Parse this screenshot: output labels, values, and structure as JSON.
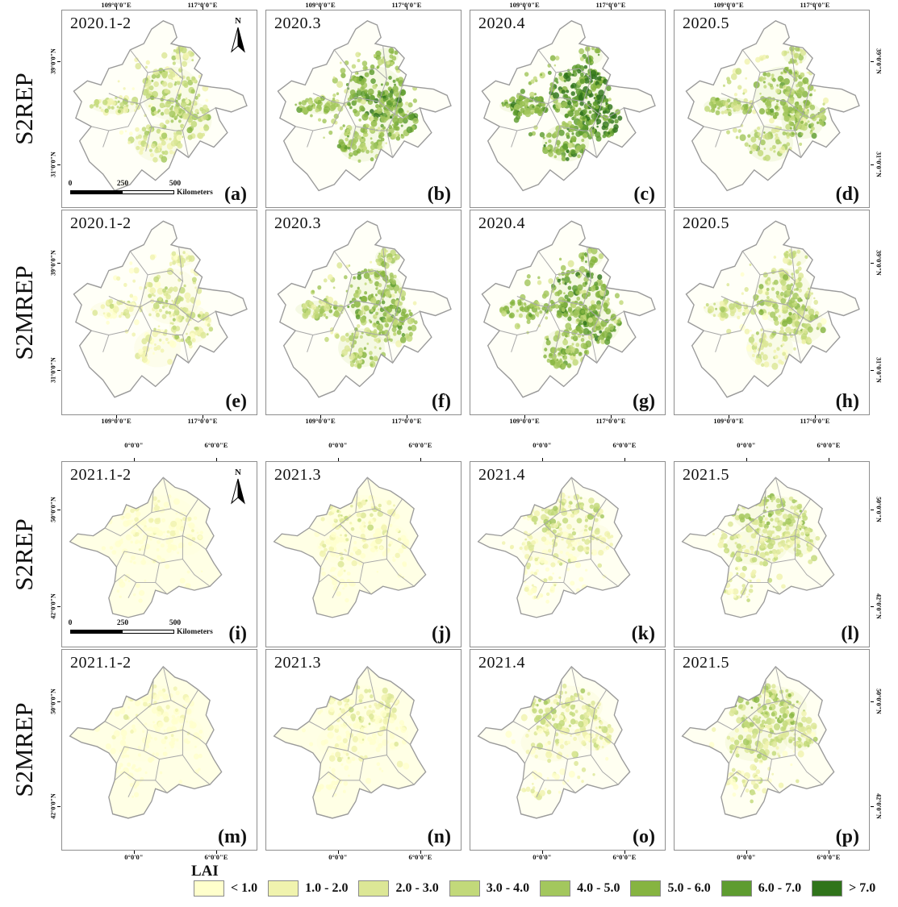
{
  "figure": {
    "north_arrow_label": "N",
    "scale_bar": {
      "ticks": [
        "0",
        "250",
        "500"
      ],
      "unit": "Kilometers"
    },
    "legend": {
      "title": "LAI",
      "classes": [
        {
          "label": "< 1.0",
          "color": "#FFFFCC"
        },
        {
          "label": "1.0 - 2.0",
          "color": "#F0F3AE"
        },
        {
          "label": "2.0 - 3.0",
          "color": "#DCE796"
        },
        {
          "label": "3.0 - 4.0",
          "color": "#C2D97A"
        },
        {
          "label": "4.0 - 5.0",
          "color": "#A3C75D"
        },
        {
          "label": "5.0 - 6.0",
          "color": "#86B441"
        },
        {
          "label": "6.0 - 7.0",
          "color": "#5E9C30"
        },
        {
          "label": "> 7.0",
          "color": "#30741B"
        }
      ]
    },
    "blocks": [
      {
        "region": "china",
        "top_axis_labels": [
          "109°0'0\"E",
          "117°0'0\"E"
        ],
        "bottom_axis_labels": [
          "109°0'0\"E",
          "117°0'0\"E"
        ],
        "left_axis_labels": [
          "39°0'0\"N",
          "31°0'0\"N"
        ],
        "right_axis_labels": [
          "39°0'0\"N",
          "31°0'0\"N"
        ],
        "rows": [
          {
            "label": "S2REP",
            "panels": [
              {
                "title": "2020.1-2",
                "letter": "(a)",
                "intensity": 4,
                "north_arrow": true,
                "scale_bar": true
              },
              {
                "title": "2020.3",
                "letter": "(b)",
                "intensity": 6
              },
              {
                "title": "2020.4",
                "letter": "(c)",
                "intensity": 7
              },
              {
                "title": "2020.5",
                "letter": "(d)",
                "intensity": 5
              }
            ]
          },
          {
            "label": "S2MREP",
            "panels": [
              {
                "title": "2020.1-2",
                "letter": "(e)",
                "intensity": 3
              },
              {
                "title": "2020.3",
                "letter": "(f)",
                "intensity": 5
              },
              {
                "title": "2020.4",
                "letter": "(g)",
                "intensity": 6
              },
              {
                "title": "2020.5",
                "letter": "(h)",
                "intensity": 4
              }
            ]
          }
        ]
      },
      {
        "region": "france",
        "top_axis_labels": [
          "0°0'0\"",
          "6°0'0\"E"
        ],
        "bottom_axis_labels": [
          "0°0'0\"",
          "6°0'0\"E"
        ],
        "left_axis_labels": [
          "50°0'0\"N",
          "42°0'0\"N"
        ],
        "right_axis_labels": [
          "50°0'0\"N",
          "42°0'0\"N"
        ],
        "rows": [
          {
            "label": "S2REP",
            "panels": [
              {
                "title": "2021.1-2",
                "letter": "(i)",
                "intensity": 1,
                "north_arrow": true,
                "scale_bar": true
              },
              {
                "title": "2021.3",
                "letter": "(j)",
                "intensity": 2
              },
              {
                "title": "2021.4",
                "letter": "(k)",
                "intensity": 3
              },
              {
                "title": "2021.5",
                "letter": "(l)",
                "intensity": 4
              }
            ]
          },
          {
            "label": "S2MREP",
            "panels": [
              {
                "title": "2021.1-2",
                "letter": "(m)",
                "intensity": 1
              },
              {
                "title": "2021.3",
                "letter": "(n)",
                "intensity": 2
              },
              {
                "title": "2021.4",
                "letter": "(o)",
                "intensity": 3
              },
              {
                "title": "2021.5",
                "letter": "(p)",
                "intensity": 4
              }
            ]
          }
        ]
      }
    ]
  }
}
